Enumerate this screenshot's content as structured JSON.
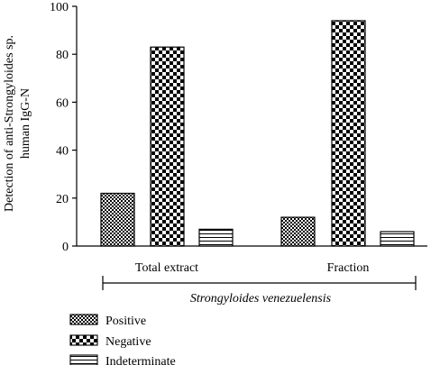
{
  "chart_data": {
    "type": "bar",
    "categories": [
      "Total extract",
      "Fraction"
    ],
    "series": [
      {
        "name": "Positive",
        "values": [
          22,
          12
        ],
        "pattern": "small-checker"
      },
      {
        "name": "Negative",
        "values": [
          83,
          94
        ],
        "pattern": "large-checker"
      },
      {
        "name": "Indeterminate",
        "values": [
          7,
          6
        ],
        "pattern": "horizontal-lines"
      }
    ],
    "ylabel_lines": [
      "Detection of anti-Strongyloides sp.",
      "human IgG-N"
    ],
    "ylim": [
      0,
      100
    ],
    "yticks": [
      0,
      20,
      40,
      60,
      80,
      100
    ],
    "group_label": "Strongyloides venezuelensis",
    "legend_position": "bottom-left",
    "grid": false,
    "colors": {
      "stroke": "#000000",
      "background": "#ffffff"
    }
  }
}
